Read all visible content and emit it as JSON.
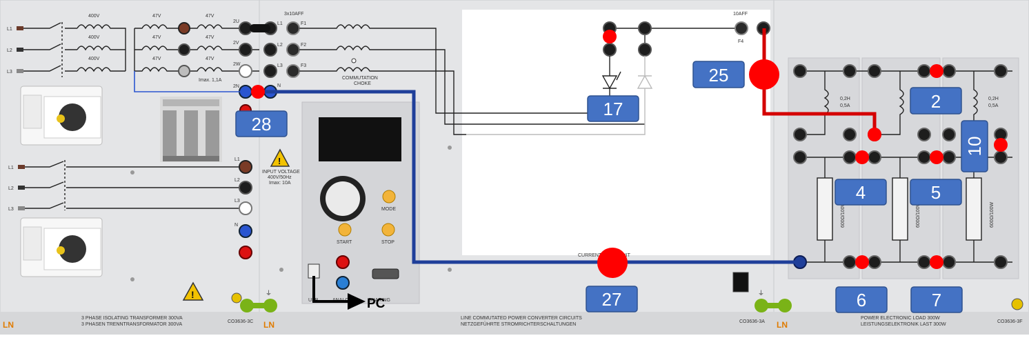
{
  "colors": {
    "panel": "#e4e5e7",
    "panel_edge": "#c9cacd",
    "tag_fill": "#4472c4",
    "tag_edge": "#2f528f",
    "red_wire": "#d40000",
    "blue_wire": "#1f3f9a",
    "marker": "#ff0000",
    "ground": "#7ab317"
  },
  "transformer_panel": {
    "phase_labels": [
      "L1",
      "L2",
      "L3"
    ],
    "primary_voltage": "400V",
    "secondary_voltage": "47V",
    "outputs": [
      "2U",
      "2V",
      "2W",
      "2N"
    ],
    "current_limit": "Imax. 1,1A",
    "lower_phase_labels": [
      "L1",
      "L2",
      "L3"
    ],
    "lower_terminals": [
      "L1",
      "L2",
      "L3",
      "N"
    ],
    "footer_line1": "3 PHASE ISOLATING TRANSFORMER 300VA",
    "footer_line2": "3 PHASEN TRENNTRANSFORMATOR 300VA",
    "code": "CO3636-3C",
    "brand": "LN"
  },
  "converter_panel": {
    "fuse_header": "3x10AFF",
    "fuse_labels": [
      "F1",
      "F2",
      "F3"
    ],
    "phase_labels": [
      "L1",
      "L2",
      "L3"
    ],
    "neutral_label": "N",
    "choke_label_1": "COMMUTATION",
    "choke_label_2": "CHOKE",
    "input_voltage_1": "INPUT VOLTAGE",
    "input_voltage_2": "400V/50Hz",
    "input_voltage_3": "Imax: 10A",
    "mode_label": "MODE",
    "start_label": "START",
    "stop_label": "STOP",
    "usb_label": "USB",
    "analog_label": "ANALOG",
    "sharing_label": "SHARING",
    "pc_label": "PC",
    "right_fuse_label": "10AFF",
    "right_fuse_id": "F4",
    "footer_line1": "LINE COMMUTATED POWER CONVERTER CIRCUITS",
    "footer_line2": "NETZGEFÜHRTE STROMRICHTERSCHALTUNGEN",
    "code": "CO3636-3A",
    "valve_label": "CURRENT VALVE UNIT",
    "brand": "LN"
  },
  "load_panel": {
    "inductor_rating_1": "0,2H",
    "inductor_rating_2": "0,5A",
    "resistor_rating": "600Ω/100W",
    "footer_line1": "POWER ELECTRONIC LOAD 300W",
    "footer_line2": "LEISTUNGSELEKTRONIK LAST 300W",
    "code": "CO3636-3F",
    "brand": "LN"
  },
  "tags": {
    "t28": "28",
    "t17": "17",
    "t25": "25",
    "t27": "27",
    "t2": "2",
    "t4": "4",
    "t5": "5",
    "t10": "10",
    "t6": "6",
    "t7": "7"
  }
}
